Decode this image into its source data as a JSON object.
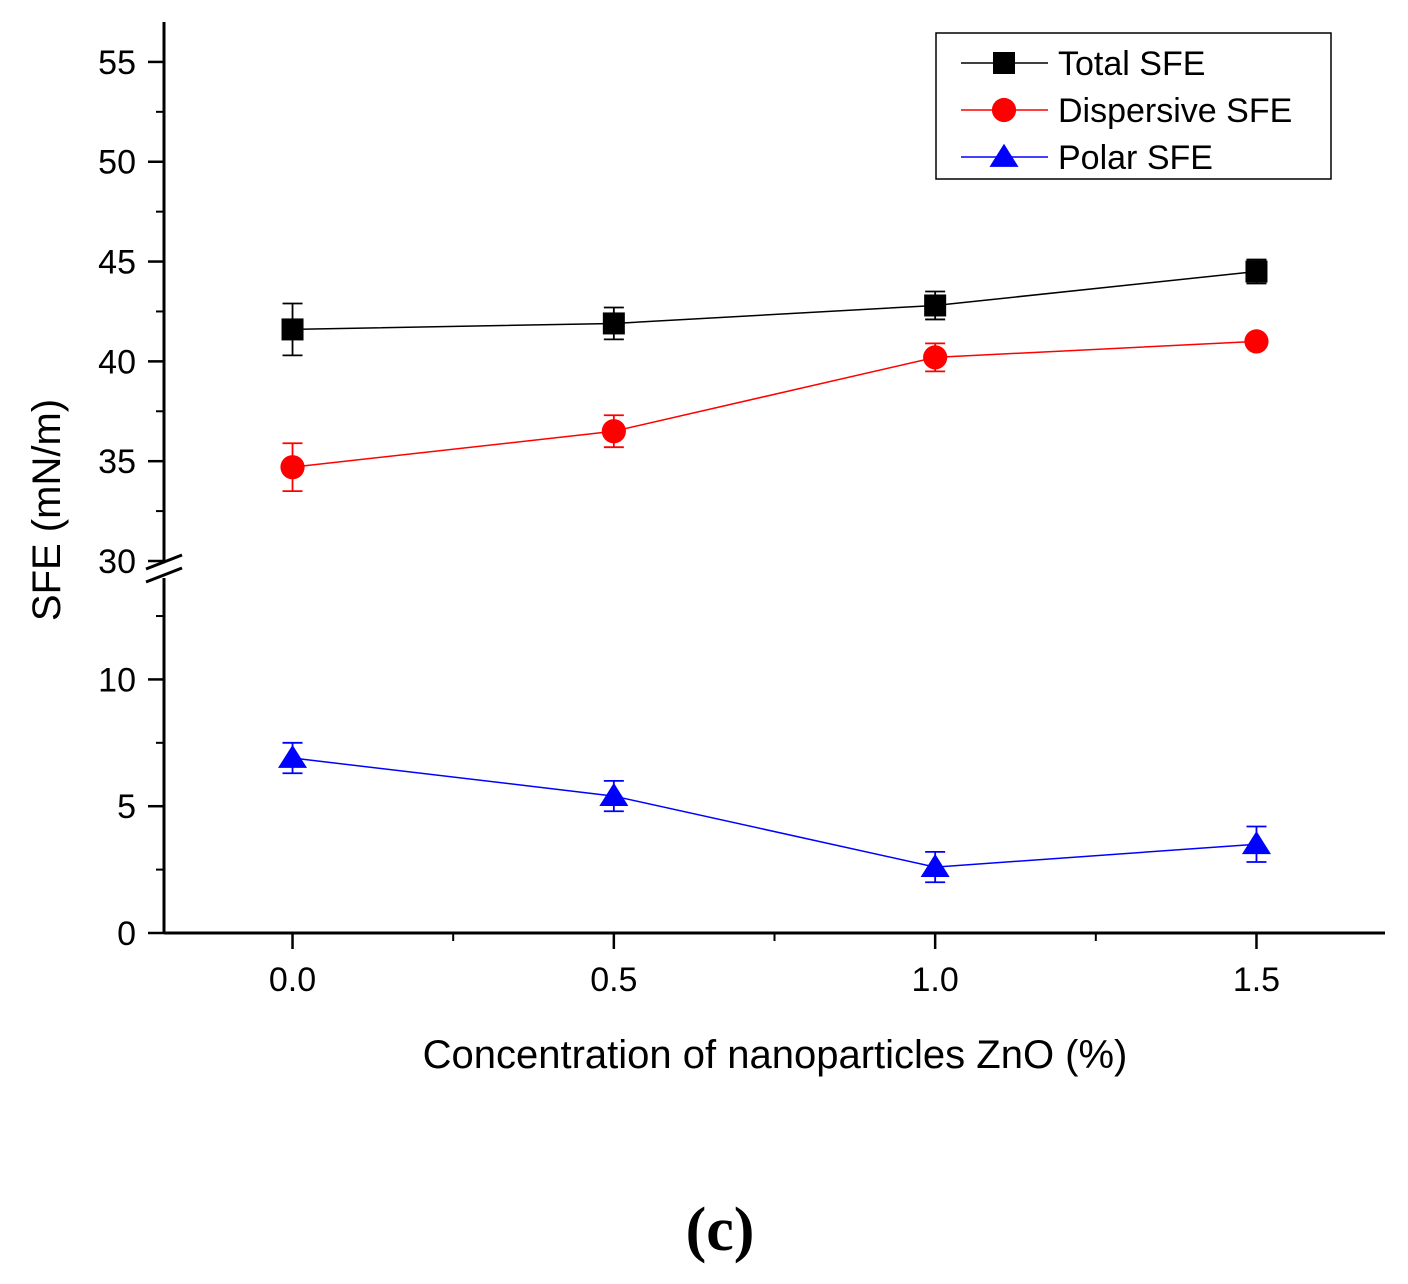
{
  "chart_data": {
    "type": "line",
    "x": [
      0.0,
      0.5,
      1.0,
      1.5
    ],
    "x_tick_labels": [
      "0.0",
      "0.5",
      "1.0",
      "1.5"
    ],
    "xlabel": "Concentration of nanoparticles ZnO (%)",
    "ylabel": "SFE (mN/m)",
    "xlim": [
      -0.2,
      1.7
    ],
    "y_axis_break": true,
    "y_upper_range": [
      30,
      57
    ],
    "y_upper_tick_labels": [
      "30",
      "35",
      "40",
      "45",
      "50",
      "55"
    ],
    "y_lower_range": [
      0,
      14
    ],
    "y_lower_tick_labels": [
      "0",
      "5",
      "10"
    ],
    "legend_position": "top-right",
    "panel_label": "(c)",
    "series": [
      {
        "name": "Total SFE",
        "values": [
          41.6,
          41.9,
          42.8,
          44.5
        ],
        "errors": [
          1.3,
          0.8,
          0.7,
          0.6
        ],
        "color": "#000000",
        "marker": "square"
      },
      {
        "name": "Dispersive SFE",
        "values": [
          34.7,
          36.5,
          40.2,
          41.0
        ],
        "errors": [
          1.2,
          0.8,
          0.7,
          0.3
        ],
        "color": "#ff0000",
        "marker": "circle"
      },
      {
        "name": "Polar SFE",
        "values": [
          6.9,
          5.4,
          2.6,
          3.5
        ],
        "errors": [
          0.6,
          0.6,
          0.6,
          0.7
        ],
        "color": "#0000ff",
        "marker": "triangle"
      }
    ]
  }
}
